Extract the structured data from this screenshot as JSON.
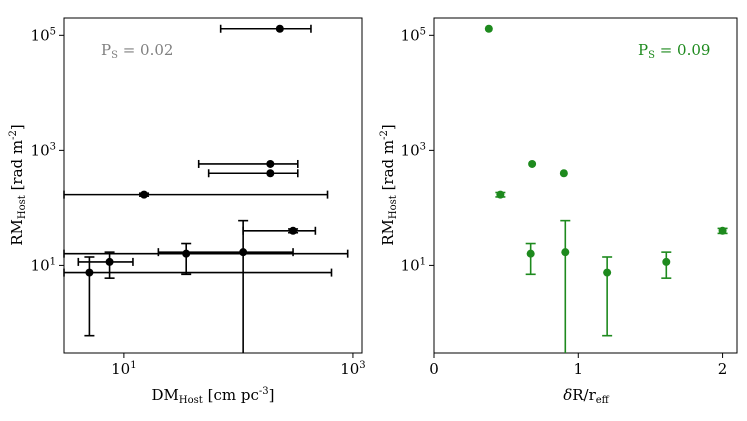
{
  "chart_data": [
    {
      "type": "scatter",
      "panel": "left",
      "xscale": "log",
      "yscale": "log",
      "xlim": [
        3,
        1200
      ],
      "ylim": [
        0.3,
        200000
      ],
      "xticks": [
        {
          "value": 10,
          "base": "10",
          "exp": "1"
        },
        {
          "value": 1000,
          "base": "10",
          "exp": "3"
        }
      ],
      "yticks": [
        {
          "value": 10,
          "base": "10",
          "exp": "1"
        },
        {
          "value": 1000,
          "base": "10",
          "exp": "3"
        },
        {
          "value": 100000,
          "base": "10",
          "exp": "5"
        }
      ],
      "xlabel": {
        "main": "DM",
        "sub": "Host",
        "unit": " [cm pc",
        "sup": "-3",
        "close": "]"
      },
      "ylabel": {
        "main": "RM",
        "sub": "Host",
        "unit": " [rad m",
        "sup": "-2",
        "close": "]"
      },
      "annotation": {
        "p": "P",
        "sub": "S",
        "text": " = 0.02",
        "color": "#808080",
        "position": "top-left"
      },
      "marker_color": "#000000",
      "points": [
        {
          "x": 230,
          "y": 130000,
          "xerr": [
            70,
            430
          ]
        },
        {
          "x": 190,
          "y": 580,
          "xerr": [
            45,
            330
          ]
        },
        {
          "x": 190,
          "y": 400,
          "xerr": [
            55,
            330
          ]
        },
        {
          "x": 15,
          "y": 170,
          "xerr": [
            3,
            600
          ],
          "yerr": [
            160,
            180
          ]
        },
        {
          "x": 300,
          "y": 40,
          "xerr": [
            110,
            470
          ],
          "yerr": [
            37,
            43
          ]
        },
        {
          "x": 110,
          "y": 17,
          "xerr": [
            20,
            300
          ],
          "yerr": [
            0.2,
            60
          ]
        },
        {
          "x": 35,
          "y": 16,
          "xerr": [
            3,
            900
          ],
          "yerr": [
            7,
            24
          ]
        },
        {
          "x": 7.5,
          "y": 11.5,
          "xerr": [
            4,
            12
          ],
          "yerr": [
            6,
            17
          ]
        },
        {
          "x": 5,
          "y": 7.5,
          "xerr": [
            3,
            650
          ],
          "yerr": [
            0.6,
            14
          ]
        }
      ]
    },
    {
      "type": "scatter",
      "panel": "right",
      "xscale": "linear",
      "yscale": "log",
      "xlim": [
        0,
        2.1
      ],
      "ylim": [
        0.3,
        200000
      ],
      "xticks": [
        {
          "value": 0,
          "label": "0"
        },
        {
          "value": 1,
          "label": "1"
        },
        {
          "value": 2,
          "label": "2"
        }
      ],
      "yticks": [
        {
          "value": 10,
          "base": "10",
          "exp": "1"
        },
        {
          "value": 1000,
          "base": "10",
          "exp": "3"
        },
        {
          "value": 100000,
          "base": "10",
          "exp": "5"
        }
      ],
      "xlabel": {
        "delta": "δ",
        "main": "R/r",
        "sub": "eff"
      },
      "ylabel": {
        "main": "RM",
        "sub": "Host",
        "unit": " [rad m",
        "sup": "-2",
        "close": "]"
      },
      "annotation": {
        "p": "P",
        "sub": "S",
        "text": " = 0.09",
        "color": "#1e8a1e",
        "position": "top-right"
      },
      "marker_color": "#1e8a1e",
      "points": [
        {
          "x": 0.38,
          "y": 130000
        },
        {
          "x": 0.46,
          "y": 170,
          "yerr": [
            155,
            185
          ]
        },
        {
          "x": 0.68,
          "y": 580
        },
        {
          "x": 0.9,
          "y": 400
        },
        {
          "x": 0.67,
          "y": 16,
          "yerr": [
            7,
            24
          ]
        },
        {
          "x": 0.91,
          "y": 17,
          "yerr": [
            0.2,
            60
          ]
        },
        {
          "x": 1.2,
          "y": 7.5,
          "yerr": [
            0.6,
            14
          ]
        },
        {
          "x": 1.61,
          "y": 11.5,
          "yerr": [
            6,
            17
          ]
        },
        {
          "x": 2.0,
          "y": 40,
          "yerr": [
            36,
            44
          ]
        }
      ]
    }
  ]
}
